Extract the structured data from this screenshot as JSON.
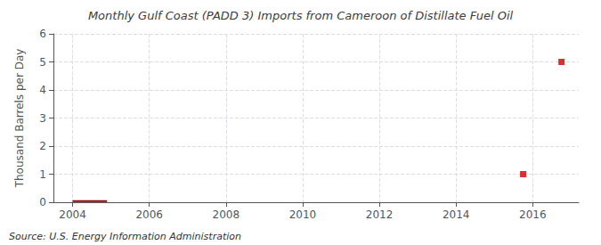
{
  "chart_data": {
    "type": "line",
    "title": "Monthly Gulf Coast (PADD 3) Imports from Cameroon of Distillate Fuel Oil",
    "ylabel": "Thousand Barrels per Day",
    "annotations": [
      "Source: U.S. Energy Information Administration"
    ],
    "series": [
      {
        "type": "line",
        "color": "#8b0000",
        "x": [
          2004.0,
          2004.9
        ],
        "values": [
          0.04,
          0.04
        ]
      },
      {
        "type": "scatter",
        "color": "#cc0000",
        "marker": "square",
        "x": [
          2015.75
        ],
        "values": [
          1.0
        ]
      },
      {
        "type": "scatter",
        "color": "#cc0000",
        "marker": "square",
        "x": [
          2016.75
        ],
        "values": [
          5.0
        ]
      }
    ],
    "xlim": [
      2003.5,
      2017.2
    ],
    "xticks": [
      2004,
      2006,
      2008,
      2010,
      2012,
      2014,
      2016
    ],
    "ylim": [
      0,
      6
    ],
    "yticks": [
      0,
      1,
      2,
      3,
      4,
      5,
      6
    ],
    "grid": true
  }
}
